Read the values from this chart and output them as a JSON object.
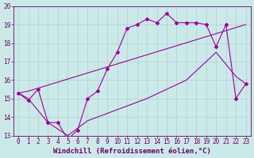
{
  "background_color": "#cce9e9",
  "line_color": "#990099",
  "grid_color": "#b0d0d0",
  "font_color": "#660066",
  "xlabel": "Windchill (Refroidissement éolien,°C)",
  "xlim": [
    -0.5,
    23.5
  ],
  "ylim": [
    13,
    20
  ],
  "xticks": [
    0,
    1,
    2,
    3,
    4,
    5,
    6,
    7,
    8,
    9,
    10,
    11,
    12,
    13,
    14,
    15,
    16,
    17,
    18,
    19,
    20,
    21,
    22,
    23
  ],
  "yticks": [
    13,
    14,
    15,
    16,
    17,
    18,
    19,
    20
  ],
  "tick_fontsize": 5.5,
  "xlabel_fontsize": 6.5,
  "line1_x": [
    0,
    1,
    2,
    3,
    4,
    5,
    6,
    7,
    8,
    9,
    10,
    11,
    12,
    13,
    14,
    15,
    16,
    17,
    18,
    19,
    20,
    21,
    22,
    23
  ],
  "line1_y": [
    15.3,
    14.9,
    15.5,
    13.7,
    13.7,
    12.8,
    13.3,
    15.0,
    15.4,
    16.6,
    17.5,
    18.8,
    19.0,
    19.3,
    19.1,
    19.6,
    19.1,
    19.1,
    19.1,
    19.0,
    17.8,
    19.0,
    15.0,
    15.8
  ],
  "line2_x": [
    0,
    1,
    23
  ],
  "line2_y": [
    15.3,
    15.4,
    19.0
  ],
  "line3_x": [
    0,
    1,
    3,
    5,
    7,
    10,
    13,
    15,
    17,
    20,
    22,
    23
  ],
  "line3_y": [
    15.3,
    15.0,
    13.7,
    13.0,
    13.8,
    14.4,
    15.0,
    15.5,
    16.0,
    17.5,
    16.2,
    15.8
  ]
}
